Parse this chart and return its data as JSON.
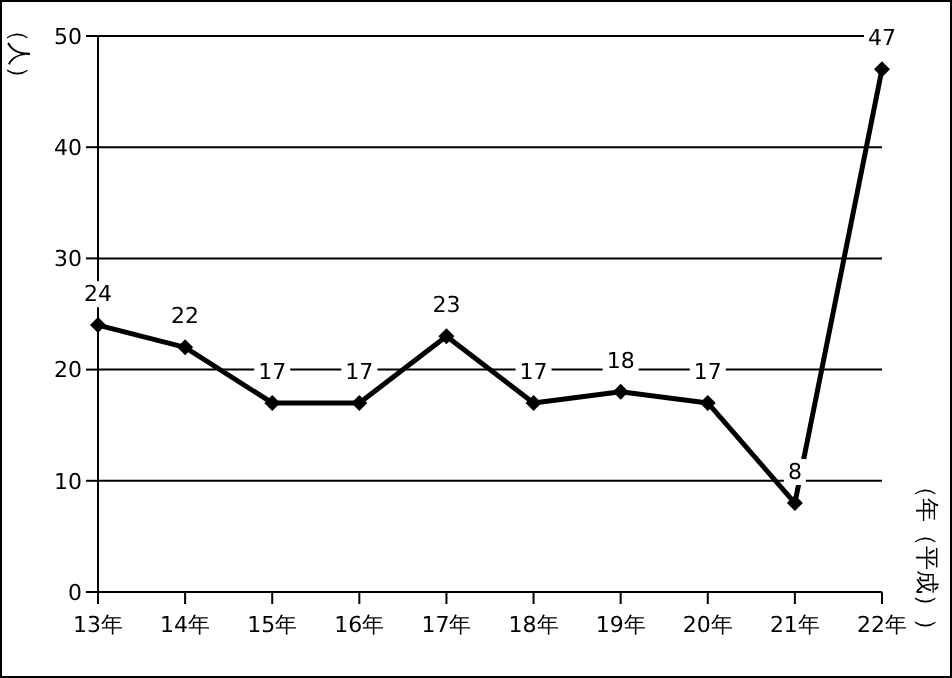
{
  "chart_data": {
    "type": "line",
    "ylabel": "（人）",
    "annotations": [
      "（年（平成））"
    ],
    "categories": [
      "13年",
      "14年",
      "15年",
      "16年",
      "17年",
      "18年",
      "19年",
      "20年",
      "21年",
      "22年"
    ],
    "series": [
      {
        "color": "#000000",
        "values": [
          24,
          22,
          17,
          17,
          23,
          17,
          18,
          17,
          8,
          47
        ]
      }
    ],
    "ylim": [
      0,
      50
    ],
    "yticks": [
      0,
      10,
      20,
      30,
      40,
      50
    ],
    "grid": "y",
    "marker": "diamond",
    "data_labels": true
  }
}
